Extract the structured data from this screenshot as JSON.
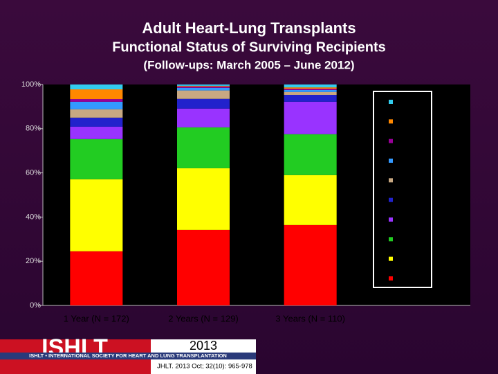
{
  "chart_data": {
    "type": "stacked-bar",
    "title": "Adult Heart-Lung Transplants",
    "subtitle": "Functional Status of Surviving Recipients",
    "note": "(Follow-ups: March 2005 – June 2012)",
    "categories": [
      "1 Year (N = 172)",
      "2 Years (N = 129)",
      "3 Years (N = 110)"
    ],
    "series": [
      {
        "color": "#ff0000",
        "values": [
          24.5,
          34.2,
          36.4
        ]
      },
      {
        "color": "#ffff00",
        "values": [
          32.6,
          27.9,
          22.6
        ]
      },
      {
        "color": "#22cc22",
        "values": [
          18.2,
          18.5,
          18.5
        ]
      },
      {
        "color": "#9933ff",
        "values": [
          5.6,
          8.5,
          14.7
        ]
      },
      {
        "color": "#2222cc",
        "values": [
          4.1,
          4.4,
          3.1
        ]
      },
      {
        "color": "#c8a882",
        "values": [
          3.8,
          3.8,
          1.3
        ]
      },
      {
        "color": "#3399ff",
        "values": [
          3.4,
          1.2,
          0.9
        ]
      },
      {
        "color": "#990099",
        "values": [
          1.2,
          0.6,
          0.6
        ]
      },
      {
        "color": "#ff8800",
        "values": [
          4.4,
          0.3,
          0.6
        ]
      },
      {
        "color": "#33ccee",
        "values": [
          2.2,
          0.6,
          1.3
        ]
      }
    ],
    "ylim": [
      0,
      100
    ],
    "yticks": [
      {
        "value": 0,
        "label": "0%"
      },
      {
        "value": 20,
        "label": "20%"
      },
      {
        "value": 40,
        "label": "40%"
      },
      {
        "value": 60,
        "label": "60%"
      },
      {
        "value": 80,
        "label": "80%"
      },
      {
        "value": 100,
        "label": "100%"
      }
    ],
    "legend": "right"
  },
  "footer": {
    "logo": "ISHLT",
    "society": "ISHLT • INTERNATIONAL SOCIETY FOR HEART AND LUNG TRANSPLANTATION",
    "year": "2013",
    "citation": "JHLT. 2013 Oct; 32(10): 965-978"
  }
}
